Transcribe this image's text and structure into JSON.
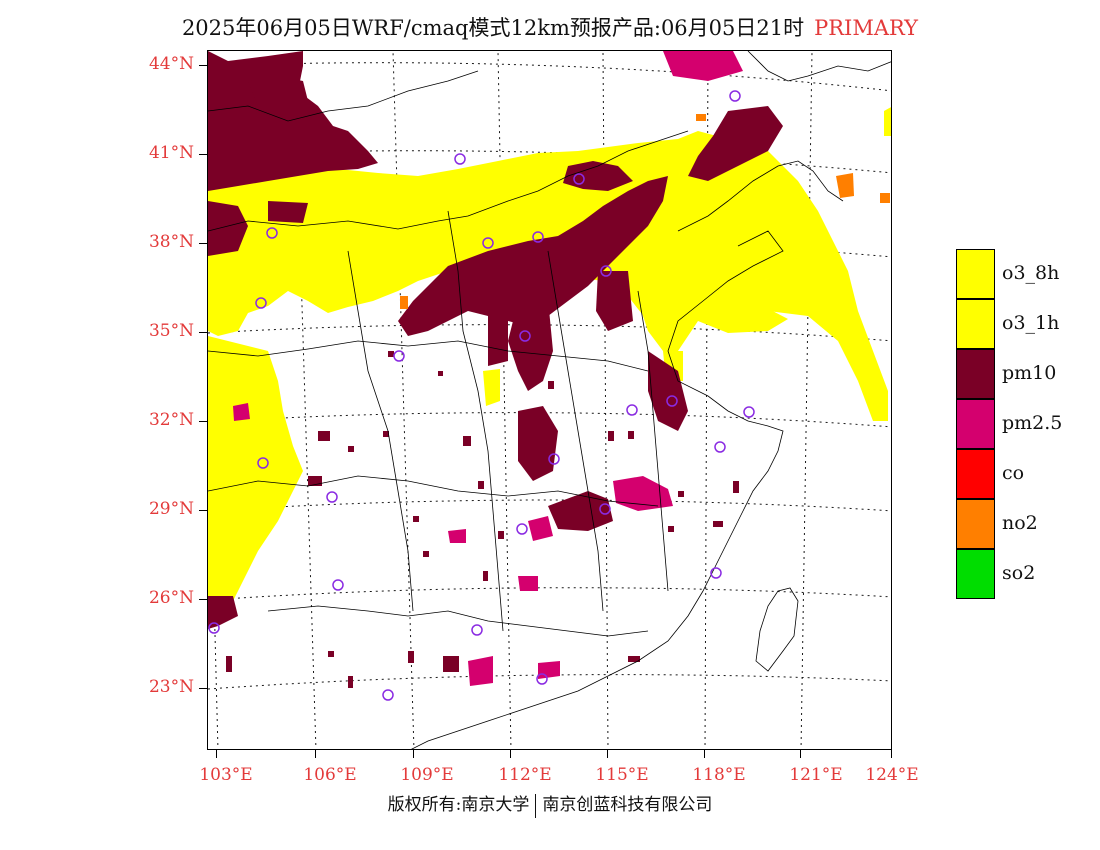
{
  "title": {
    "text": "2025年06月05日WRF/cmaq模式12km预报产品:06月05日21时",
    "primary": "PRIMARY"
  },
  "axes": {
    "lat_labels": [
      "44°N",
      "41°N",
      "38°N",
      "35°N",
      "32°N",
      "29°N",
      "26°N",
      "23°N"
    ],
    "lon_labels": [
      "103°E",
      "106°E",
      "109°E",
      "112°E",
      "115°E",
      "118°E",
      "121°E",
      "124°E"
    ]
  },
  "legend": {
    "items": [
      {
        "label": "o3_8h",
        "color": "#ffff00"
      },
      {
        "label": "o3_1h",
        "color": "#ffff00"
      },
      {
        "label": "pm10",
        "color": "#7a0026"
      },
      {
        "label": "pm2.5",
        "color": "#d4006e"
      },
      {
        "label": "co",
        "color": "#ff0000"
      },
      {
        "label": "no2",
        "color": "#ff7f00"
      },
      {
        "label": "so2",
        "color": "#00dd00"
      }
    ]
  },
  "colors": {
    "o3": "#ffff00",
    "pm10": "#7a0026",
    "pm25": "#d4006e",
    "no2": "#ff7f00",
    "station_marker": "#8a2be2",
    "label_red": "#e33a3a"
  },
  "copyright": {
    "left": "版权所有:南京大学",
    "right": "南京创蓝科技有限公司"
  }
}
